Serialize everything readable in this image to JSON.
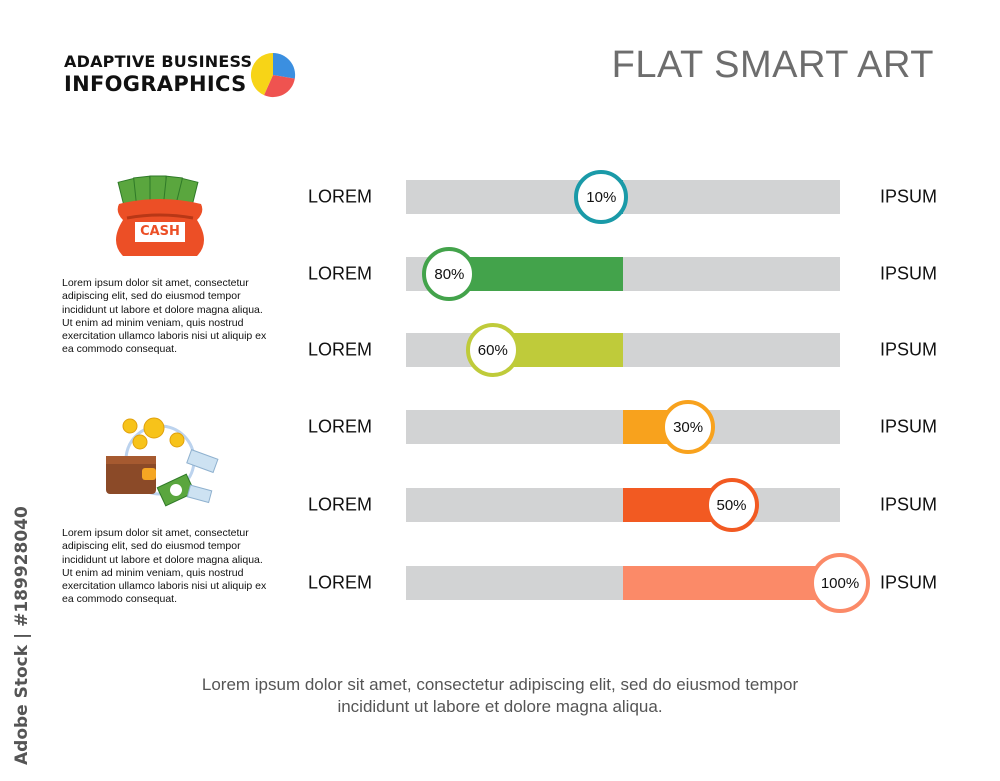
{
  "brand": {
    "line1": "ADAPTIVE BUSINESS",
    "line2": "INFOGRAPHICS"
  },
  "page_title": "FLAT SMART ART",
  "side_text_1": "Lorem ipsum dolor sit amet, consectetur adipiscing elit, sed do eiusmod tempor incididunt ut labore et dolore magna aliqua. Ut enim ad minim veniam, quis nostrud exercitation ullamco laboris nisi ut aliquip ex ea commodo consequat.",
  "side_text_2": "Lorem ipsum dolor sit amet, consectetur adipiscing elit, sed do eiusmod tempor incididunt ut labore et dolore magna aliqua. Ut enim ad minim veniam, quis nostrud exercitation ullamco laboris nisi ut aliquip ex ea commodo consequat.",
  "cash_label": "CASH",
  "footer": {
    "line1": "Lorem ipsum dolor sit amet, consectetur adipiscing elit, sed do eiusmod tempor",
    "line2": "incididunt ut labore et dolore magna aliqua."
  },
  "watermark": "Adobe Stock | #189928040",
  "icons": [
    "pie-chart-icon",
    "cash-bag-icon",
    "wallet-coins-icon"
  ],
  "colors": {
    "track": "#d2d3d4",
    "brand_pie": [
      "#3b8fe0",
      "#ef5350",
      "#f7d417"
    ]
  },
  "chart_data": {
    "type": "bar",
    "orientation": "horizontal-diverging",
    "categories": [
      "LOREM",
      "LOREM",
      "LOREM",
      "LOREM",
      "LOREM",
      "LOREM"
    ],
    "right_labels": [
      "IPSUM",
      "IPSUM",
      "IPSUM",
      "IPSUM",
      "IPSUM",
      "IPSUM"
    ],
    "values": [
      -10,
      -80,
      -60,
      30,
      50,
      100
    ],
    "value_labels": [
      "10%",
      "80%",
      "60%",
      "30%",
      "50%",
      "100%"
    ],
    "colors": [
      "#1a9aa8",
      "#43a34b",
      "#bfcb3a",
      "#f8a21d",
      "#f25a22",
      "#fb8a68"
    ],
    "xlim": [
      -100,
      100
    ]
  }
}
